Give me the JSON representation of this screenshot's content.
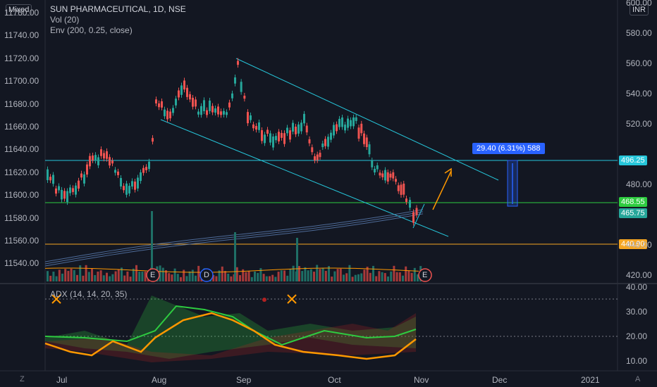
{
  "header": {
    "mode_button": "Mixed",
    "symbol_title": "SUN PHARMACEUTICAL, 1D, NSE",
    "indicator_vol": "Vol (20)",
    "indicator_env": "Env (200, 0.25, close)",
    "currency": "INR"
  },
  "left_scale": {
    "ticks": [
      "11760.00",
      "11740.00",
      "11720.00",
      "11700.00",
      "11680.00",
      "11660.00",
      "11640.00",
      "11620.00",
      "11600.00",
      "11580.00",
      "11560.00",
      "11540.00"
    ]
  },
  "right_scale": {
    "ticks": [
      "600.00",
      "580.00",
      "560.00",
      "540.00",
      "520.00",
      "500.00",
      "480.00",
      "460.00",
      "440.00",
      "420.00"
    ]
  },
  "price_levels": [
    {
      "name": "target-level",
      "value": "496.25",
      "color": "#26c6da"
    },
    {
      "name": "resistance-level",
      "value": "468.55",
      "color": "#2ecc40"
    },
    {
      "name": "last-price",
      "value": "465.75",
      "color": "#26a69a"
    },
    {
      "name": "support-level",
      "value": "440.90",
      "color": "#f5a623"
    }
  ],
  "measure_label": "29.40 (6.31%) 588",
  "event_markers": [
    {
      "name": "earnings-marker-1",
      "letter": "E",
      "color": "#ef5350"
    },
    {
      "name": "dividend-marker",
      "letter": "D",
      "color": "#2962ff"
    },
    {
      "name": "earnings-marker-2",
      "letter": "E",
      "color": "#ef5350"
    }
  ],
  "adx_panel": {
    "title": "ADX (14, 14, 20, 35)",
    "ticks": [
      "40.00",
      "30.00",
      "20.00",
      "10.00"
    ]
  },
  "time_axis": {
    "labels": [
      "Jul",
      "Aug",
      "Sep",
      "Oct",
      "Nov",
      "Dec",
      "2021"
    ]
  },
  "icons": {
    "timezone": "Z",
    "scale_mode": "A"
  },
  "colors": {
    "bg": "#131722",
    "up": "#26a69a",
    "down": "#ef5350",
    "channel": "#26c6da",
    "adx": "#ff9800",
    "di_plus": "#2ecc40",
    "di_minus": "#b22222",
    "envelope": "#5d7fb5"
  }
}
